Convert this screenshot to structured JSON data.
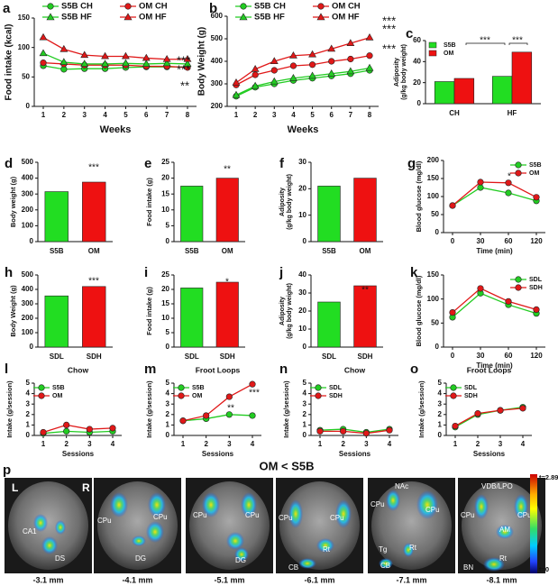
{
  "chart_data": [
    {
      "type": "line",
      "label": "a",
      "ylabel": "Food intake (kcal)",
      "xlabel": "Weeks",
      "categories": [
        "1",
        "2",
        "3",
        "4",
        "5",
        "6",
        "7",
        "8"
      ],
      "ylim": [
        0,
        150
      ],
      "yticks": [
        0,
        50,
        100,
        150
      ],
      "legend": "top",
      "series": [
        {
          "name": "S5B CH",
          "color": "#22cc22",
          "marker": "circle",
          "values": [
            69,
            63,
            64,
            64,
            66,
            67,
            67,
            67
          ]
        },
        {
          "name": "OM CH",
          "color": "#e01818",
          "marker": "circle",
          "values": [
            74,
            72,
            70,
            70,
            70,
            68,
            68,
            66
          ]
        },
        {
          "name": "S5B HF",
          "color": "#22cc22",
          "marker": "triangle",
          "values": [
            90,
            75,
            72,
            72,
            73,
            72,
            73,
            72
          ]
        },
        {
          "name": "OM HF",
          "color": "#e01818",
          "marker": "triangle",
          "values": [
            117,
            97,
            87,
            85,
            85,
            82,
            80,
            80
          ]
        }
      ],
      "annotations": [
        "***",
        "***",
        "**"
      ]
    },
    {
      "type": "line",
      "label": "b",
      "ylabel": "Body Weight (g)",
      "xlabel": "Weeks",
      "categories": [
        "1",
        "2",
        "3",
        "4",
        "5",
        "6",
        "7",
        "8"
      ],
      "ylim": [
        200,
        600
      ],
      "yticks": [
        200,
        300,
        400,
        500,
        600
      ],
      "legend": "top",
      "series": [
        {
          "name": "S5B CH",
          "color": "#22cc22",
          "marker": "circle",
          "values": [
            245,
            285,
            300,
            315,
            325,
            335,
            345,
            360
          ]
        },
        {
          "name": "OM CH",
          "color": "#e01818",
          "marker": "circle",
          "values": [
            295,
            340,
            360,
            380,
            385,
            400,
            410,
            425
          ]
        },
        {
          "name": "S5B HF",
          "color": "#22cc22",
          "marker": "triangle",
          "values": [
            250,
            290,
            310,
            325,
            335,
            345,
            355,
            370
          ]
        },
        {
          "name": "OM HF",
          "color": "#e01818",
          "marker": "triangle",
          "values": [
            305,
            365,
            400,
            425,
            430,
            455,
            480,
            505
          ]
        }
      ],
      "annotations": [
        "***",
        "***",
        "***"
      ]
    },
    {
      "type": "bar",
      "label": "c",
      "ylabel": [
        "Adiposity",
        "(g/kg body weight)"
      ],
      "categories": [
        "CH",
        "HF"
      ],
      "ylim": [
        0,
        60
      ],
      "yticks": [
        0,
        20,
        40,
        60
      ],
      "legend": "upper left",
      "series": [
        {
          "name": "S5B",
          "color": "#22dd22",
          "values": [
            21,
            26
          ]
        },
        {
          "name": "OM",
          "color": "#ee1111",
          "values": [
            24,
            49
          ]
        }
      ],
      "annotations": [
        "***",
        "***"
      ]
    },
    {
      "type": "bar",
      "label": "d",
      "ylabel": "Body weight (g)",
      "categories": [
        "S5B",
        "OM"
      ],
      "values": [
        315,
        375
      ],
      "colors": [
        "#22dd22",
        "#ee1111"
      ],
      "ylim": [
        0,
        500
      ],
      "yticks": [
        0,
        100,
        200,
        300,
        400,
        500
      ],
      "annotations": [
        "***"
      ]
    },
    {
      "type": "bar",
      "label": "e",
      "ylabel": "Food intake (g)",
      "categories": [
        "S5B",
        "OM"
      ],
      "values": [
        17.5,
        20
      ],
      "colors": [
        "#22dd22",
        "#ee1111"
      ],
      "ylim": [
        0,
        25
      ],
      "yticks": [
        0,
        5,
        10,
        15,
        20,
        25
      ],
      "annotations": [
        "**"
      ]
    },
    {
      "type": "bar",
      "label": "f",
      "ylabel": [
        "Adiposity",
        "(g/kg body weight)"
      ],
      "categories": [
        "S5B",
        "OM"
      ],
      "values": [
        21,
        24
      ],
      "colors": [
        "#22dd22",
        "#ee1111"
      ],
      "ylim": [
        0,
        30
      ],
      "yticks": [
        0,
        10,
        20,
        30
      ],
      "annotations": []
    },
    {
      "type": "line",
      "label": "g",
      "ylabel": "Blood glucose (mg/dl)",
      "xlabel": "Time (min)",
      "categories": [
        "0",
        "30",
        "60",
        "120"
      ],
      "ylim": [
        0,
        200
      ],
      "yticks": [
        0,
        50,
        100,
        150,
        200
      ],
      "legend": "upper right",
      "series": [
        {
          "name": "S5B",
          "color": "#22cc22",
          "marker": "circle",
          "values": [
            75,
            125,
            110,
            88
          ]
        },
        {
          "name": "OM",
          "color": "#e01818",
          "marker": "circle",
          "values": [
            75,
            140,
            138,
            98
          ]
        }
      ],
      "annotations": [
        "*"
      ]
    },
    {
      "type": "bar",
      "label": "h",
      "ylabel": "Body Weight (g)",
      "categories": [
        "SDL",
        "SDH"
      ],
      "values": [
        355,
        420
      ],
      "colors": [
        "#22dd22",
        "#ee1111"
      ],
      "ylim": [
        0,
        500
      ],
      "yticks": [
        0,
        100,
        200,
        300,
        400,
        500
      ],
      "annotations": [
        "***"
      ]
    },
    {
      "type": "bar",
      "label": "i",
      "ylabel": "Food intake (g)",
      "categories": [
        "SDL",
        "SDH"
      ],
      "values": [
        20.5,
        22.5
      ],
      "colors": [
        "#22dd22",
        "#ee1111"
      ],
      "ylim": [
        0,
        25
      ],
      "yticks": [
        0,
        5,
        10,
        15,
        20,
        25
      ],
      "annotations": [
        "*"
      ]
    },
    {
      "type": "bar",
      "label": "j",
      "ylabel": [
        "Adiposity",
        "(g/kg body weight)"
      ],
      "categories": [
        "SDL",
        "SDH"
      ],
      "values": [
        25,
        34
      ],
      "colors": [
        "#22dd22",
        "#ee1111"
      ],
      "ylim": [
        0,
        40
      ],
      "yticks": [
        0,
        10,
        20,
        30,
        40
      ],
      "annotations": [
        "**"
      ]
    },
    {
      "type": "line",
      "label": "k",
      "ylabel": "Blood glucose (mg/dl)",
      "xlabel": "Time (min)",
      "categories": [
        "0",
        "30",
        "60",
        "120"
      ],
      "ylim": [
        0,
        150
      ],
      "yticks": [
        0,
        50,
        100,
        150
      ],
      "legend": "upper right",
      "series": [
        {
          "name": "SDL",
          "color": "#22cc22",
          "marker": "circle",
          "values": [
            62,
            112,
            88,
            70
          ]
        },
        {
          "name": "SDH",
          "color": "#e01818",
          "marker": "circle",
          "values": [
            72,
            122,
            95,
            78
          ]
        }
      ],
      "annotations": []
    },
    {
      "type": "line",
      "label": "l",
      "title": "Chow",
      "ylabel": "Intake (g/session)",
      "xlabel": "Sessions",
      "categories": [
        "1",
        "2",
        "3",
        "4"
      ],
      "ylim": [
        0,
        5
      ],
      "yticks": [
        0,
        1,
        2,
        3,
        4,
        5
      ],
      "legend": "upper left",
      "series": [
        {
          "name": "S5B",
          "color": "#22cc22",
          "marker": "circle",
          "values": [
            0.2,
            0.4,
            0.3,
            0.4
          ]
        },
        {
          "name": "OM",
          "color": "#e01818",
          "marker": "circle",
          "values": [
            0.3,
            1.0,
            0.6,
            0.7
          ]
        }
      ],
      "annotations": []
    },
    {
      "type": "line",
      "label": "m",
      "title": "Froot Loops",
      "ylabel": "Intake (g/session)",
      "xlabel": "Sessions",
      "categories": [
        "1",
        "2",
        "3",
        "4"
      ],
      "ylim": [
        0,
        5
      ],
      "yticks": [
        0,
        1,
        2,
        3,
        4,
        5
      ],
      "legend": "upper left",
      "series": [
        {
          "name": "S5B",
          "color": "#22cc22",
          "marker": "circle",
          "values": [
            1.4,
            1.6,
            2.0,
            1.9
          ]
        },
        {
          "name": "OM",
          "color": "#e01818",
          "marker": "circle",
          "values": [
            1.4,
            1.9,
            3.7,
            4.9
          ]
        }
      ],
      "annotations": [
        "**",
        "***"
      ]
    },
    {
      "type": "line",
      "label": "n",
      "title": "Chow",
      "ylabel": "Intake (g/session)",
      "xlabel": "Sessions",
      "categories": [
        "1",
        "2",
        "3",
        "4"
      ],
      "ylim": [
        0,
        5
      ],
      "yticks": [
        0,
        1,
        2,
        3,
        4,
        5
      ],
      "legend": "upper left",
      "series": [
        {
          "name": "SDL",
          "color": "#22cc22",
          "marker": "circle",
          "values": [
            0.5,
            0.6,
            0.3,
            0.6
          ]
        },
        {
          "name": "SDH",
          "color": "#e01818",
          "marker": "circle",
          "values": [
            0.4,
            0.4,
            0.2,
            0.5
          ]
        }
      ],
      "annotations": []
    },
    {
      "type": "line",
      "label": "o",
      "title": "Froot  Loops",
      "ylabel": "Intake (g/session)",
      "xlabel": "Sessions",
      "categories": [
        "1",
        "2",
        "3",
        "4"
      ],
      "ylim": [
        0,
        5
      ],
      "yticks": [
        0,
        1,
        2,
        3,
        4,
        5
      ],
      "legend": "upper left",
      "series": [
        {
          "name": "SDL",
          "color": "#22cc22",
          "marker": "circle",
          "values": [
            0.8,
            2.0,
            2.4,
            2.7
          ]
        },
        {
          "name": "SDH",
          "color": "#e01818",
          "marker": "circle",
          "values": [
            0.9,
            2.1,
            2.4,
            2.6
          ]
        }
      ],
      "annotations": []
    }
  ],
  "brain_panel": {
    "label": "p",
    "title": "OM < S5B",
    "slices": [
      {
        "depth": "-3.1 mm",
        "labels": [
          "L",
          "R",
          "CA1",
          "DS"
        ]
      },
      {
        "depth": "-4.1 mm",
        "labels": [
          "CPu",
          "CPu",
          "DG"
        ]
      },
      {
        "depth": "-5.1 mm",
        "labels": [
          "CPu",
          "CPu",
          "DG"
        ]
      },
      {
        "depth": "-6.1 mm",
        "labels": [
          "CPu",
          "CPu",
          "Rt",
          "CB"
        ]
      },
      {
        "depth": "-7.1 mm",
        "labels": [
          "NAc",
          "CPu",
          "CPu",
          "Rt",
          "Tg",
          "CB"
        ]
      },
      {
        "depth": "-8.1 mm",
        "labels": [
          "VDB/LPO",
          "CPu",
          "CPu",
          "AM",
          "Rt",
          "BN"
        ]
      }
    ],
    "colorbar": {
      "max": "t=2.89",
      "min": "t=0"
    }
  }
}
